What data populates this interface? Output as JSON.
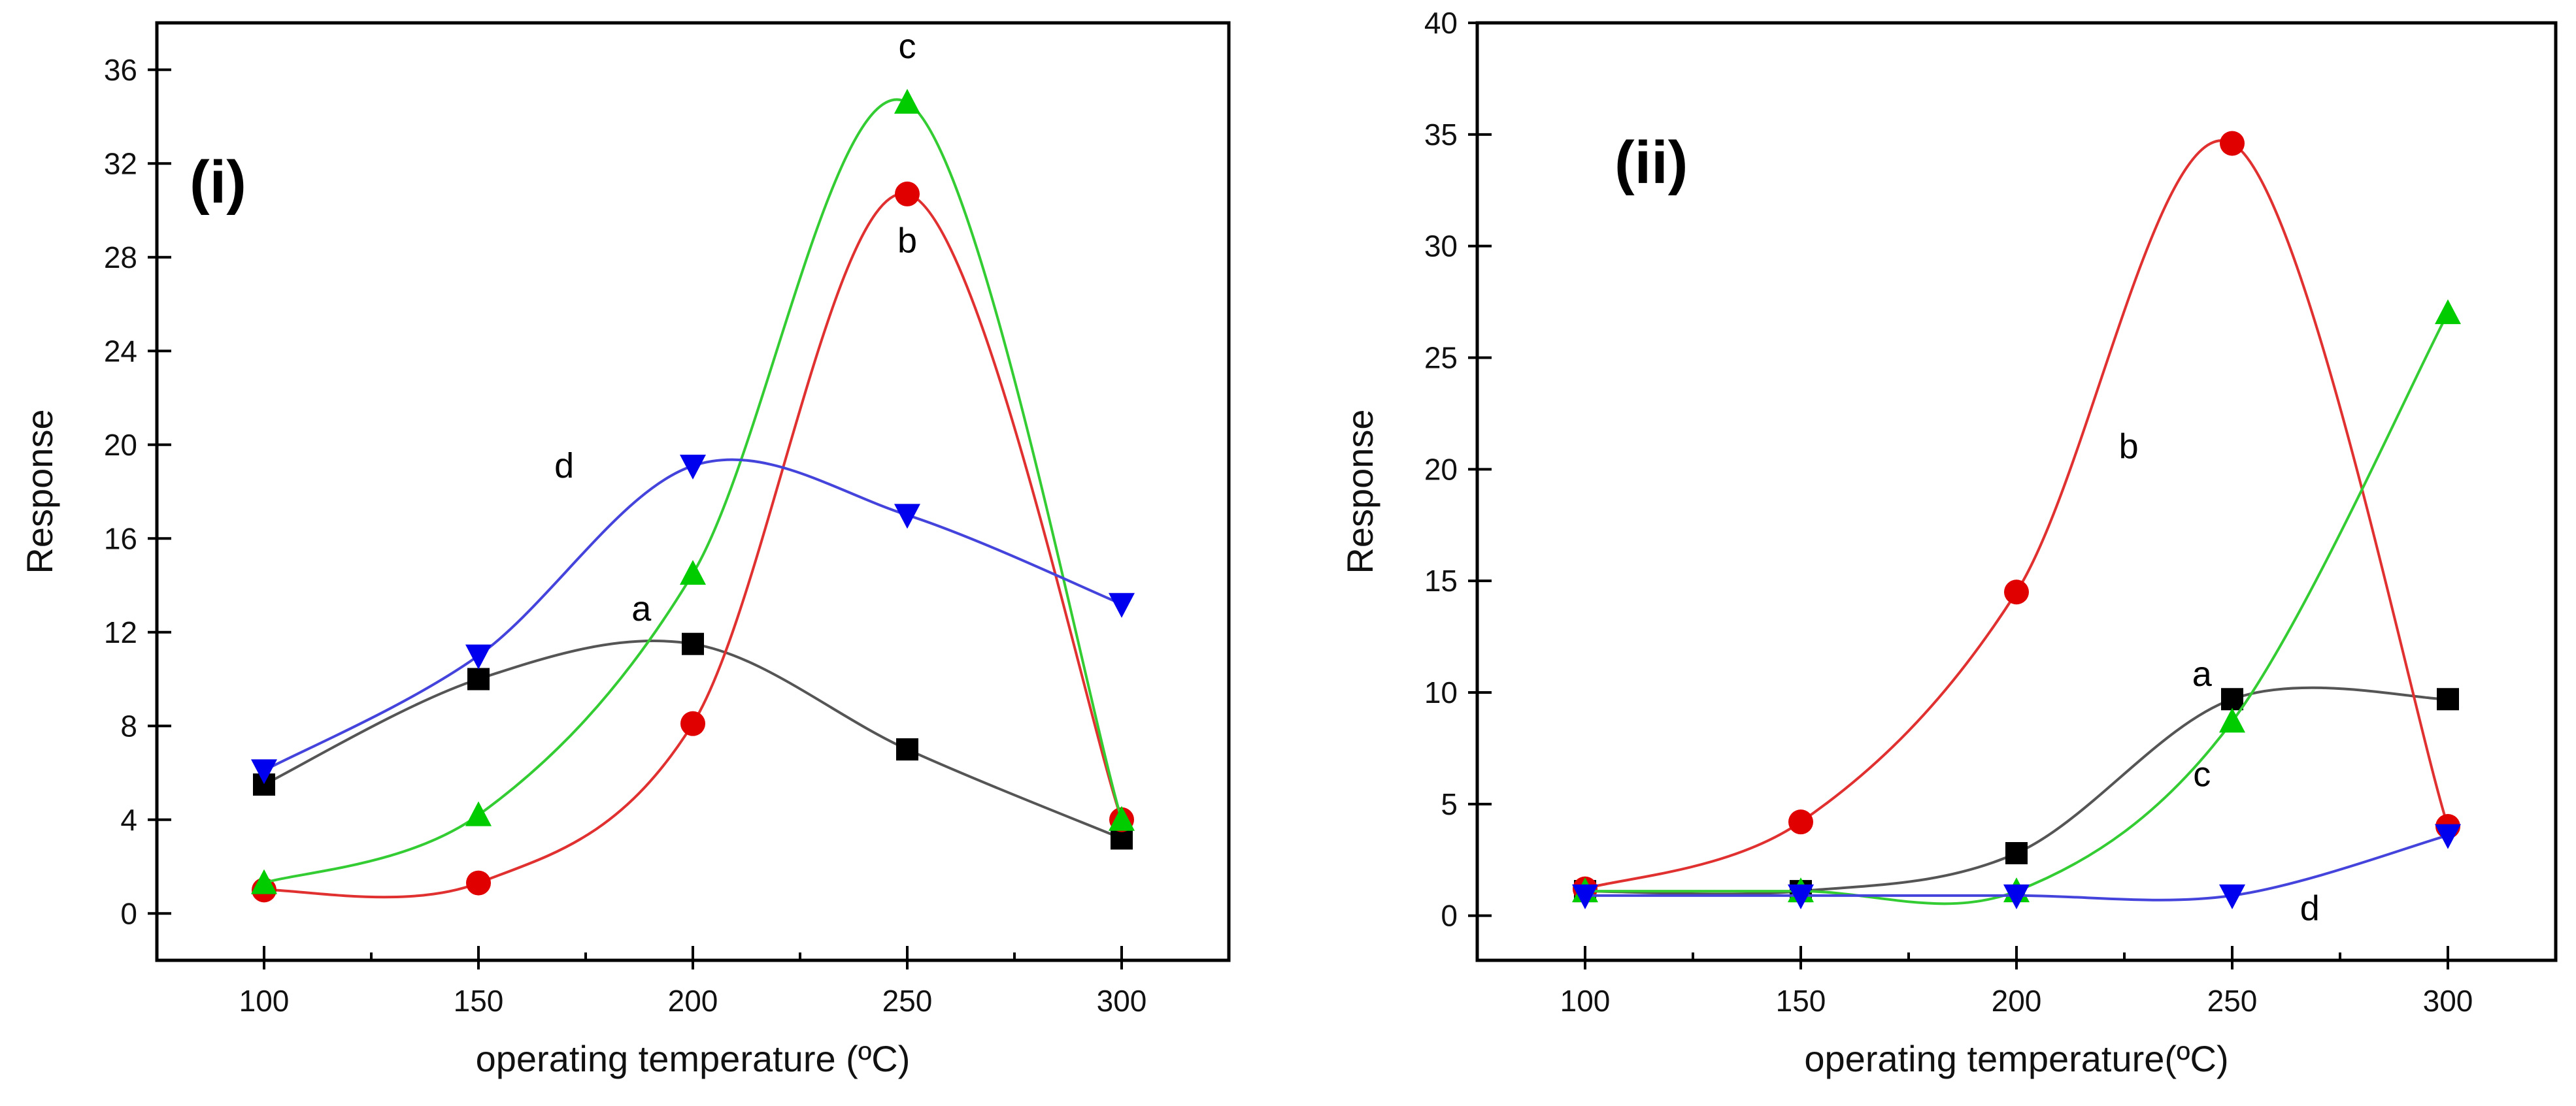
{
  "chart_data": [
    {
      "type": "line",
      "panel_label": "(i)",
      "xlabel": "operating temperature (ºC)",
      "ylabel": "Response",
      "x": [
        100,
        150,
        200,
        250,
        300
      ],
      "xlim": [
        75,
        325
      ],
      "ylim": [
        -2,
        38
      ],
      "xticks": [
        100,
        150,
        200,
        250,
        300
      ],
      "yticks": [
        0,
        4,
        8,
        12,
        16,
        20,
        24,
        28,
        32,
        36
      ],
      "legend": "none",
      "series": [
        {
          "name": "a",
          "values": [
            5.5,
            10.0,
            11.5,
            7.0,
            3.2
          ],
          "color": "#000000",
          "marker": "square",
          "line_color": "#555555",
          "label_at": [
            188,
            12.5
          ]
        },
        {
          "name": "b",
          "values": [
            1.0,
            1.3,
            8.1,
            30.7,
            4.0
          ],
          "color": "#e00000",
          "marker": "circle",
          "line_color": "#e03030",
          "label_at": [
            250,
            28.2
          ]
        },
        {
          "name": "c",
          "values": [
            1.3,
            4.2,
            14.5,
            34.6,
            4.0
          ],
          "color": "#00cc00",
          "marker": "triangle-up",
          "line_color": "#33cc33",
          "label_at": [
            250,
            36.5
          ]
        },
        {
          "name": "d",
          "values": [
            6.1,
            11.0,
            19.1,
            17.0,
            13.2
          ],
          "color": "#0000ee",
          "marker": "triangle-down",
          "line_color": "#4444dd",
          "label_at": [
            170,
            18.6
          ]
        }
      ]
    },
    {
      "type": "line",
      "panel_label": "(ii)",
      "xlabel": "operating temperature(ºC)",
      "ylabel": "Response",
      "x": [
        100,
        150,
        200,
        250,
        300
      ],
      "xlim": [
        75,
        325
      ],
      "ylim": [
        -2,
        40
      ],
      "xticks": [
        100,
        150,
        200,
        250,
        300
      ],
      "yticks": [
        0,
        5,
        10,
        15,
        20,
        25,
        30,
        35,
        40
      ],
      "legend": "none",
      "series": [
        {
          "name": "a",
          "values": [
            1.1,
            1.1,
            2.8,
            9.7,
            9.7
          ],
          "color": "#000000",
          "marker": "square",
          "line_color": "#555555",
          "label_at": [
            243,
            10.3
          ]
        },
        {
          "name": "b",
          "values": [
            1.2,
            4.2,
            14.5,
            34.6,
            4.0
          ],
          "color": "#e00000",
          "marker": "circle",
          "line_color": "#e03030",
          "label_at": [
            226,
            20.5
          ]
        },
        {
          "name": "c",
          "values": [
            1.1,
            1.1,
            1.1,
            8.7,
            27.0
          ],
          "color": "#00cc00",
          "marker": "triangle-up",
          "line_color": "#33cc33",
          "label_at": [
            243,
            5.8
          ]
        },
        {
          "name": "d",
          "values": [
            0.9,
            0.9,
            0.9,
            0.9,
            3.6
          ],
          "color": "#0000ee",
          "marker": "triangle-down",
          "line_color": "#4444dd",
          "label_at": [
            268,
            -0.2
          ]
        }
      ]
    }
  ]
}
